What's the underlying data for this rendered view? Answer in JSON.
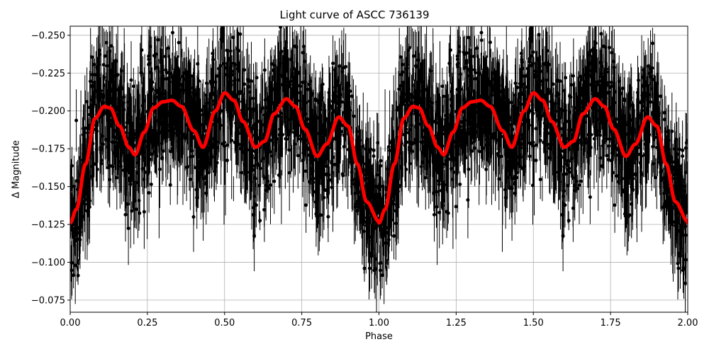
{
  "chart_data": {
    "type": "scatter",
    "title": "Light curve of ASCC 736139",
    "xlabel": "Phase",
    "ylabel": "Δ Magnitude",
    "xlim": [
      0.0,
      2.0
    ],
    "ylim": [
      -0.256,
      -0.067
    ],
    "y_inverted": true,
    "grid": true,
    "xticks": [
      "0.00",
      "0.25",
      "0.50",
      "0.75",
      "1.00",
      "1.25",
      "1.50",
      "1.75",
      "2.00"
    ],
    "yticks": [
      "−0.250",
      "−0.225",
      "−0.200",
      "−0.175",
      "−0.150",
      "−0.125",
      "−0.100",
      "−0.075"
    ],
    "series": [
      {
        "name": "observations",
        "kind": "errorbar-scatter",
        "color": "#000000",
        "description": "Dense cloud of black points with vertical error bars spanning roughly −0.256 to −0.067, following the model curve with large scatter"
      },
      {
        "name": "model",
        "kind": "line",
        "color": "#ff0000",
        "x": [
          0.0,
          0.02,
          0.05,
          0.08,
          0.11,
          0.13,
          0.16,
          0.19,
          0.21,
          0.24,
          0.27,
          0.3,
          0.33,
          0.36,
          0.4,
          0.43,
          0.47,
          0.5,
          0.53,
          0.56,
          0.6,
          0.63,
          0.66,
          0.7,
          0.73,
          0.76,
          0.8,
          0.83,
          0.87,
          0.9,
          0.93,
          0.96,
          1.0
        ],
        "y": [
          -0.126,
          -0.135,
          -0.165,
          -0.195,
          -0.203,
          -0.202,
          -0.19,
          -0.176,
          -0.171,
          -0.186,
          -0.202,
          -0.206,
          -0.207,
          -0.203,
          -0.187,
          -0.176,
          -0.2,
          -0.212,
          -0.207,
          -0.193,
          -0.176,
          -0.18,
          -0.198,
          -0.208,
          -0.203,
          -0.188,
          -0.17,
          -0.178,
          -0.196,
          -0.19,
          -0.165,
          -0.14,
          -0.127
        ]
      }
    ],
    "period_repeats": "Model curve for phase 1.00–2.00 repeats the 0.00–1.00 shape"
  }
}
